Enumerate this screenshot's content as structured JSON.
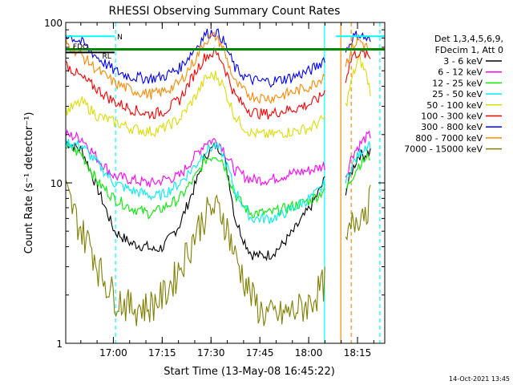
{
  "chart_data": {
    "type": "line",
    "title": "RHESSI Observing Summary Count Rates",
    "xlabel": "Start Time (13-May-08 16:45:22)",
    "ylabel": "Count Rate (s⁻¹ detector⁻¹)",
    "yscale": "log",
    "ylim": [
      1,
      100
    ],
    "xlim_minutes_after_1645": [
      0,
      98
    ],
    "x_ticks": [
      "17:00",
      "17:15",
      "17:30",
      "17:45",
      "18:00",
      "18:15"
    ],
    "y_ticks": [
      "1",
      "10",
      "100"
    ],
    "footer_date": "14-Oct-2021 13:45",
    "legend_header": [
      "Det 1,3,4,5,6,9,",
      "FDecim 1, Att 0"
    ],
    "flag_labels": [
      "N",
      "FDO",
      "RL"
    ],
    "series": [
      {
        "name": "3 - 6 keV",
        "color": "#000000",
        "x": [
          0,
          5,
          10,
          15,
          20,
          25,
          27,
          30,
          35,
          40,
          43,
          46,
          48,
          50,
          52,
          55,
          57,
          60,
          63,
          66,
          70,
          75,
          78,
          80,
          81,
          84,
          86,
          88,
          90,
          92,
          94
        ],
        "y": [
          18,
          16,
          9,
          5,
          4.2,
          4,
          3.8,
          4,
          5.5,
          10,
          15,
          17,
          16,
          11,
          6,
          4.3,
          3.6,
          3.5,
          3.6,
          4,
          5,
          7,
          9,
          11,
          null,
          null,
          9,
          12,
          15,
          15,
          16
        ]
      },
      {
        "name": "6 - 12 keV",
        "color": "#ff00ff",
        "x": [
          0,
          5,
          10,
          15,
          20,
          25,
          27,
          30,
          35,
          40,
          43,
          46,
          48,
          50,
          52,
          55,
          57,
          60,
          63,
          66,
          70,
          75,
          78,
          80,
          81,
          84,
          86,
          88,
          90,
          92,
          94
        ],
        "y": [
          20,
          19,
          14,
          11,
          10.5,
          10,
          10,
          10.5,
          11,
          15,
          18,
          18.5,
          17,
          14,
          12,
          11,
          10.5,
          10.5,
          10.5,
          11,
          11.5,
          12,
          12.5,
          13,
          null,
          null,
          11,
          15,
          17,
          19,
          20
        ]
      },
      {
        "name": "12 - 25 keV",
        "color": "#00ee00",
        "x": [
          0,
          5,
          10,
          15,
          20,
          25,
          27,
          30,
          35,
          40,
          43,
          46,
          48,
          50,
          52,
          55,
          57,
          60,
          63,
          66,
          70,
          75,
          78,
          80,
          81,
          84,
          86,
          88,
          90,
          92,
          94
        ],
        "y": [
          17,
          15,
          10,
          8,
          7,
          6.5,
          6.5,
          7,
          8,
          11,
          14,
          15,
          14,
          11,
          8.5,
          7,
          6.5,
          6.5,
          6.5,
          6.8,
          7.2,
          7.8,
          8.5,
          9.5,
          null,
          null,
          9,
          11,
          13,
          14,
          15
        ]
      },
      {
        "name": "25 - 50 keV",
        "color": "#00eeee",
        "x": [
          0,
          5,
          10,
          15,
          20,
          25,
          27,
          30,
          35,
          40,
          43,
          46,
          48,
          50,
          52,
          55,
          57,
          60,
          63,
          66,
          70,
          75,
          78,
          80,
          81,
          84,
          86,
          88,
          90,
          92,
          94
        ],
        "y": [
          18,
          17,
          13,
          10,
          9,
          8.5,
          8.2,
          8.5,
          10,
          13,
          16,
          17,
          15.5,
          12,
          9,
          7,
          6,
          6,
          6,
          6.3,
          7,
          8,
          9,
          10,
          null,
          null,
          10,
          13,
          15,
          17,
          18
        ]
      },
      {
        "name": "50 - 100 keV",
        "color": "#dddd00",
        "x": [
          0,
          5,
          10,
          15,
          20,
          25,
          27,
          30,
          35,
          40,
          43,
          46,
          48,
          50,
          52,
          55,
          57,
          60,
          63,
          66,
          70,
          75,
          78,
          80,
          81,
          84,
          86,
          88,
          90,
          92,
          94
        ],
        "y": [
          28,
          32,
          26,
          24,
          22,
          21,
          21,
          22,
          25,
          35,
          45,
          47,
          42,
          33,
          26,
          22,
          20.5,
          20,
          20,
          20.5,
          21,
          22,
          24,
          26,
          null,
          null,
          30,
          45,
          60,
          50,
          35
        ]
      },
      {
        "name": "100 - 300 keV",
        "color": "#ff0000",
        "x": [
          0,
          5,
          10,
          15,
          20,
          25,
          27,
          30,
          35,
          40,
          43,
          46,
          48,
          50,
          52,
          55,
          57,
          60,
          63,
          66,
          70,
          75,
          78,
          80,
          81,
          84,
          86,
          88,
          90,
          92,
          94
        ],
        "y": [
          55,
          45,
          38,
          32,
          29,
          27,
          27,
          28,
          33,
          50,
          62,
          65,
          58,
          45,
          35,
          30,
          28,
          27,
          27,
          28,
          29,
          31,
          34,
          38,
          null,
          null,
          45,
          62,
          65,
          63,
          60
        ]
      },
      {
        "name": "300 - 800 keV",
        "color": "#0000ff",
        "x": [
          0,
          5,
          10,
          15,
          20,
          25,
          27,
          30,
          35,
          40,
          43,
          46,
          48,
          50,
          52,
          55,
          57,
          60,
          63,
          66,
          70,
          75,
          78,
          80,
          81,
          84,
          86,
          88,
          90,
          92,
          94
        ],
        "y": [
          85,
          75,
          60,
          50,
          46,
          45,
          45,
          46,
          52,
          70,
          85,
          88,
          80,
          65,
          52,
          46,
          44,
          43,
          43,
          44,
          46,
          50,
          55,
          62,
          null,
          null,
          65,
          80,
          85,
          80,
          75
        ]
      },
      {
        "name": "800 - 7000 keV",
        "color": "#ff8800",
        "x": [
          0,
          5,
          10,
          15,
          20,
          25,
          27,
          30,
          35,
          40,
          43,
          46,
          48,
          50,
          52,
          55,
          57,
          60,
          63,
          66,
          70,
          75,
          78,
          80,
          81,
          84,
          86,
          88,
          90,
          92,
          94
        ],
        "y": [
          75,
          62,
          50,
          42,
          38,
          36,
          36,
          37,
          42,
          60,
          78,
          82,
          72,
          55,
          42,
          37,
          35,
          34,
          34,
          35,
          37,
          40,
          44,
          50,
          null,
          null,
          55,
          70,
          78,
          72,
          65
        ]
      },
      {
        "name": "7000 - 15000 keV",
        "color": "#808000",
        "x": [
          0,
          2,
          5,
          8,
          10,
          12,
          15,
          18,
          20,
          23,
          25,
          27,
          30,
          33,
          35,
          38,
          40,
          43,
          46,
          48,
          50,
          52,
          55,
          57,
          60,
          63,
          66,
          70,
          75,
          78,
          80,
          81,
          84,
          86,
          88,
          90,
          92,
          94
        ],
        "y": [
          9,
          7,
          5,
          4,
          3,
          2.5,
          2,
          1.8,
          1.7,
          1.7,
          1.7,
          1.8,
          2,
          2.5,
          3,
          4,
          5,
          6.5,
          7,
          6.5,
          5,
          3.5,
          2.5,
          2,
          1.6,
          1.5,
          1.5,
          1.6,
          1.8,
          2.2,
          2.5,
          null,
          null,
          4,
          5.5,
          6.5,
          7,
          8
        ]
      }
    ],
    "flag_bars": [
      {
        "label": "N",
        "color": "#00ffff",
        "y": 82,
        "segments": [
          [
            0,
            15
          ]
        ]
      },
      {
        "label": "N",
        "color": "#00ffff",
        "y": 82,
        "segments": [
          [
            83,
            98
          ]
        ]
      },
      {
        "label": "FDO",
        "color": "#008800",
        "y": 68,
        "segments": [
          [
            0,
            98
          ]
        ]
      },
      {
        "label": "RL",
        "color": "#000000",
        "y": 65,
        "segments": [
          [
            0,
            15
          ]
        ]
      }
    ],
    "vlines": [
      {
        "x": 15.3,
        "color": "#00ffff",
        "style": "dashed"
      },
      {
        "x": 79.5,
        "color": "#00ffff",
        "style": "solid"
      },
      {
        "x": 84.5,
        "color": "#ff8800",
        "style": "solid"
      },
      {
        "x": 87.7,
        "color": "#ff8800",
        "style": "dashed"
      },
      {
        "x": 96.5,
        "color": "#00ffff",
        "style": "dashed"
      }
    ]
  }
}
